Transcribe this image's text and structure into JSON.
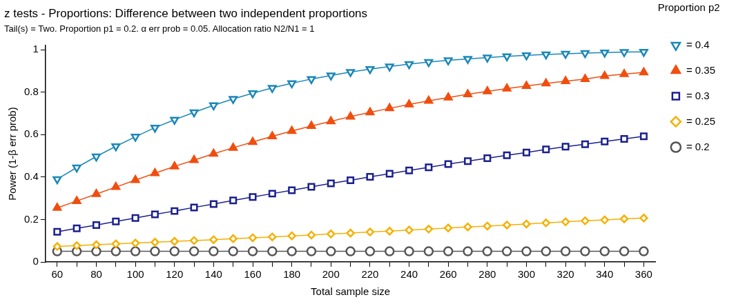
{
  "chart_data": {
    "type": "line",
    "title": "z tests - Proportions: Difference between two independent proportions",
    "subtitle": "Tail(s) = Two. Proportion p1 = 0.2. α err prob = 0.05. Allocation ratio N2/N1 = 1",
    "xlabel": "Total sample size",
    "ylabel": "Power (1-β err prob)",
    "legend_title": "Proportion p2",
    "x": [
      60,
      70,
      80,
      90,
      100,
      110,
      120,
      130,
      140,
      150,
      160,
      170,
      180,
      190,
      200,
      210,
      220,
      230,
      240,
      250,
      260,
      270,
      280,
      290,
      300,
      310,
      320,
      330,
      340,
      350,
      360
    ],
    "series": [
      {
        "name": "= 0.4",
        "color": "#1a87b8",
        "marker": "triangle-down",
        "values": [
          0.39,
          0.445,
          0.497,
          0.545,
          0.59,
          0.633,
          0.67,
          0.705,
          0.738,
          0.768,
          0.795,
          0.82,
          0.842,
          0.862,
          0.879,
          0.895,
          0.909,
          0.921,
          0.932,
          0.942,
          0.95,
          0.957,
          0.963,
          0.969,
          0.974,
          0.978,
          0.981,
          0.984,
          0.987,
          0.989,
          0.99
        ]
      },
      {
        "name": "= 0.35",
        "color": "#f04e0f",
        "marker": "triangle",
        "values": [
          0.255,
          0.287,
          0.32,
          0.353,
          0.386,
          0.418,
          0.45,
          0.48,
          0.51,
          0.538,
          0.565,
          0.592,
          0.617,
          0.641,
          0.663,
          0.685,
          0.705,
          0.724,
          0.742,
          0.759,
          0.775,
          0.79,
          0.804,
          0.817,
          0.829,
          0.841,
          0.852,
          0.862,
          0.876,
          0.885,
          0.893
        ]
      },
      {
        "name": "= 0.3",
        "color": "#1a1f8c",
        "marker": "square",
        "values": [
          0.142,
          0.158,
          0.174,
          0.191,
          0.207,
          0.224,
          0.24,
          0.257,
          0.273,
          0.29,
          0.306,
          0.322,
          0.338,
          0.354,
          0.37,
          0.385,
          0.401,
          0.416,
          0.431,
          0.446,
          0.461,
          0.475,
          0.489,
          0.503,
          0.516,
          0.53,
          0.543,
          0.555,
          0.568,
          0.58,
          0.592
        ]
      },
      {
        "name": "= 0.25",
        "color": "#f5b000",
        "marker": "diamond",
        "values": [
          0.073,
          0.077,
          0.081,
          0.085,
          0.089,
          0.093,
          0.097,
          0.101,
          0.105,
          0.11,
          0.114,
          0.118,
          0.123,
          0.127,
          0.132,
          0.136,
          0.141,
          0.145,
          0.15,
          0.155,
          0.16,
          0.165,
          0.169,
          0.174,
          0.179,
          0.184,
          0.189,
          0.194,
          0.198,
          0.203,
          0.207
        ]
      },
      {
        "name": "= 0.2",
        "color": "#555555",
        "marker": "circle",
        "values": [
          0.05,
          0.05,
          0.05,
          0.05,
          0.05,
          0.05,
          0.05,
          0.05,
          0.05,
          0.05,
          0.05,
          0.05,
          0.05,
          0.05,
          0.05,
          0.05,
          0.05,
          0.05,
          0.05,
          0.05,
          0.05,
          0.05,
          0.05,
          0.05,
          0.05,
          0.05,
          0.05,
          0.05,
          0.05,
          0.05,
          0.05
        ]
      }
    ],
    "xlim": [
      54,
      366
    ],
    "xticks": [
      60,
      {
        "value": 70,
        "label": null
      },
      80,
      {
        "value": 90,
        "label": null
      },
      100,
      {
        "value": 110,
        "label": null
      },
      120,
      {
        "value": 130,
        "label": null
      },
      140,
      {
        "value": 150,
        "label": null
      },
      160,
      {
        "value": 170,
        "label": null
      },
      180,
      {
        "value": 190,
        "label": null
      },
      200,
      {
        "value": 210,
        "label": null
      },
      220,
      {
        "value": 230,
        "label": null
      },
      240,
      {
        "value": 250,
        "label": null
      },
      260,
      {
        "value": 270,
        "label": null
      },
      280,
      {
        "value": 290,
        "label": null
      },
      300,
      {
        "value": 310,
        "label": null
      },
      320,
      {
        "value": 330,
        "label": null
      },
      340,
      {
        "value": 350,
        "label": null
      },
      360
    ],
    "ylim": [
      0,
      1.02
    ],
    "yticks": [
      0,
      0.2,
      0.4,
      0.6,
      0.8,
      1
    ],
    "grid": false,
    "legend": "right",
    "line_style": "solid"
  }
}
